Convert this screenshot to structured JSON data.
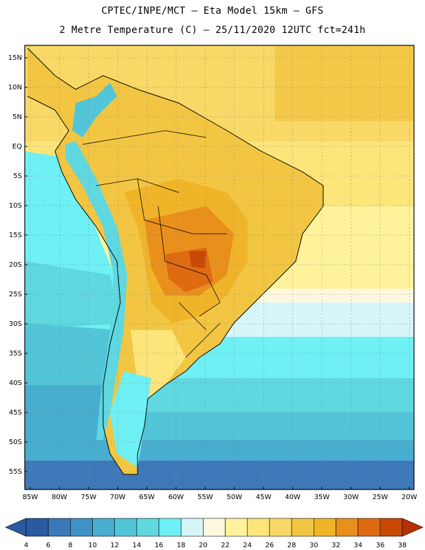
{
  "header": {
    "line1": "CPTEC/INPE/MCT  –   Eta Model 15km  –  GFS",
    "line2": "2 Metre Temperature (C) – 25/11/2020 12UTC fct=241h"
  },
  "axes": {
    "lat_labels": [
      "15N",
      "10N",
      "5N",
      "EQ",
      "5S",
      "10S",
      "15S",
      "20S",
      "25S",
      "30S",
      "35S",
      "40S",
      "45S",
      "50S",
      "55S"
    ],
    "lon_labels": [
      "85W",
      "80W",
      "75W",
      "70W",
      "65W",
      "60W",
      "55W",
      "50W",
      "45W",
      "40W",
      "35W",
      "30W",
      "25W",
      "20W"
    ]
  },
  "colorbar": {
    "labels": [
      "4",
      "6",
      "8",
      "10",
      "12",
      "14",
      "16",
      "18",
      "20",
      "22",
      "24",
      "26",
      "28",
      "30",
      "32",
      "34",
      "36",
      "38"
    ],
    "colors": [
      "#2a5aa0",
      "#3a78b8",
      "#3f93c4",
      "#48aed0",
      "#52c5d8",
      "#5fd8e0",
      "#6ef0f4",
      "#d6f6fa",
      "#fff8e0",
      "#fef39a",
      "#fde57a",
      "#f8d866",
      "#f2c642",
      "#f0b428",
      "#e98f1c",
      "#df6a10",
      "#c94806",
      "#b73200"
    ]
  }
}
